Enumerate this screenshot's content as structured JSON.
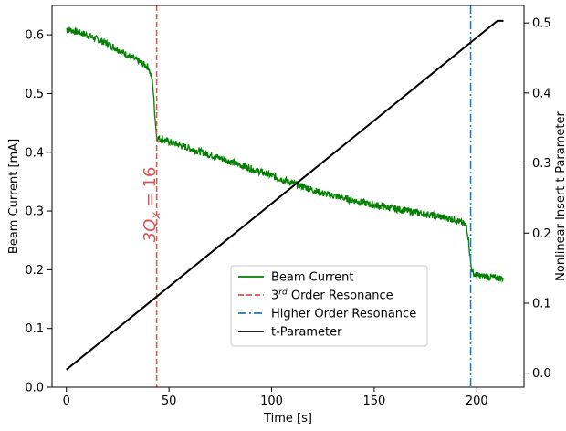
{
  "chart_data": {
    "type": "line",
    "xlabel": "Time [s]",
    "ylabel": "Beam Current [mA]",
    "y2label": "Nonlinear Insert t-Parameter",
    "xlim": [
      -7,
      223
    ],
    "ylim": [
      0.0,
      0.65
    ],
    "y2lim": [
      -0.02,
      0.525
    ],
    "xticks": [
      "0",
      "50",
      "100",
      "150",
      "200"
    ],
    "yticks": [
      "0.0",
      "0.1",
      "0.2",
      "0.3",
      "0.4",
      "0.5",
      "0.6"
    ],
    "y2ticks": [
      "0.0",
      "0.1",
      "0.2",
      "0.3",
      "0.4",
      "0.5"
    ],
    "grid": false,
    "legend_position": "lower-center",
    "annotation": {
      "text": "3Q",
      "sub": "x",
      "rest": " = 16",
      "color": "#d9534f"
    },
    "series": [
      {
        "name": "Beam Current",
        "color": "#008000",
        "axis": "left",
        "style": "solid",
        "x": [
          0,
          10,
          20,
          30,
          40,
          42,
          43,
          44,
          50,
          75,
          100,
          125,
          150,
          175,
          190,
          195,
          196,
          197,
          198,
          200,
          213
        ],
        "y": [
          0.61,
          0.6,
          0.585,
          0.565,
          0.545,
          0.52,
          0.47,
          0.425,
          0.418,
          0.39,
          0.36,
          0.33,
          0.31,
          0.295,
          0.285,
          0.275,
          0.25,
          0.21,
          0.195,
          0.19,
          0.185
        ],
        "noise": 0.006
      },
      {
        "name": "3<sup>rd</sup> Order Resonance",
        "color": "#d9534f",
        "style": "dashed",
        "x_vline": 44
      },
      {
        "name": "Higher Order Resonance",
        "color": "#1f77b4",
        "style": "dashdot",
        "x_vline": 197
      },
      {
        "name": "t-Parameter",
        "color": "#000000",
        "axis": "right",
        "style": "solid",
        "x": [
          0,
          210,
          213
        ],
        "y": [
          0.005,
          0.503,
          0.503
        ]
      }
    ]
  }
}
